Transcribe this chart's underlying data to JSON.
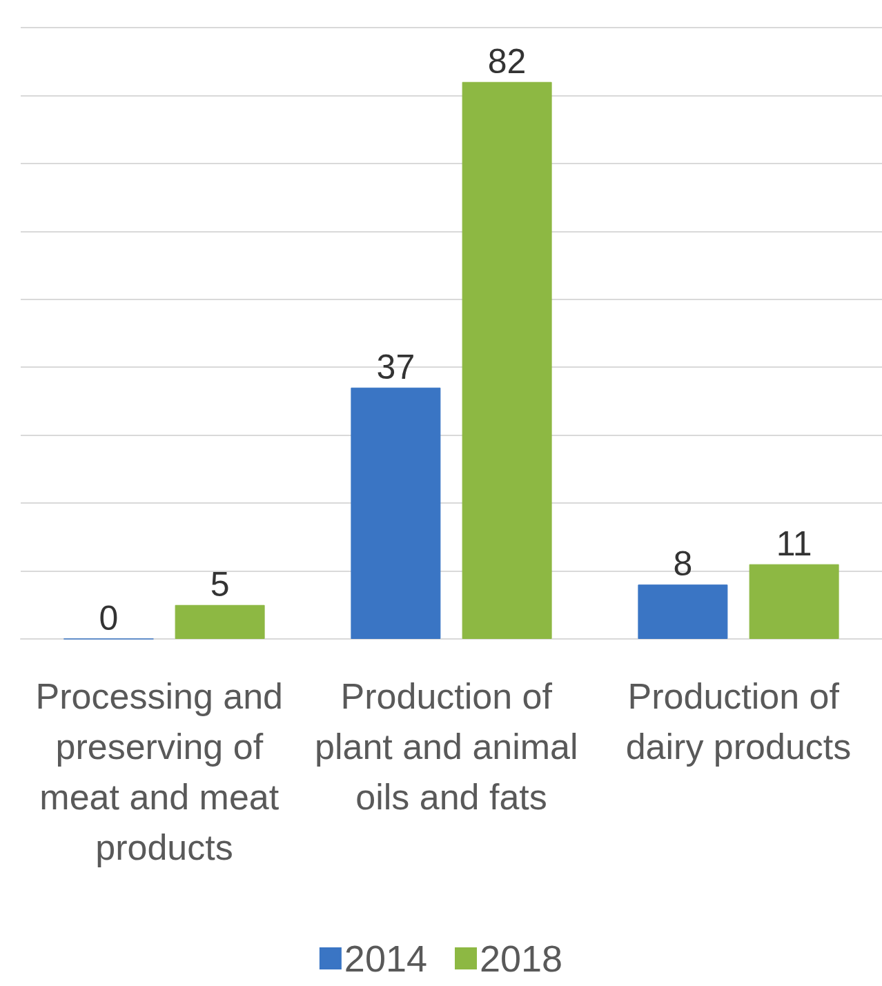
{
  "chart_data": {
    "type": "bar",
    "categories": [
      "Processing and preserving of meat and meat products",
      "Production of plant and animal oils and fats",
      "Production of dairy products"
    ],
    "series": [
      {
        "name": "2014",
        "color": "#3a75c4",
        "values": [
          0,
          37,
          8
        ]
      },
      {
        "name": "2018",
        "color": "#8db843",
        "values": [
          5,
          82,
          11
        ]
      }
    ],
    "ylim": [
      0,
      90
    ],
    "yticks": [
      0,
      10,
      20,
      30,
      40,
      50,
      60,
      70,
      80,
      90
    ],
    "tick_labels": "x",
    "grid": "y",
    "legend": "bottom",
    "data_labels": true
  }
}
